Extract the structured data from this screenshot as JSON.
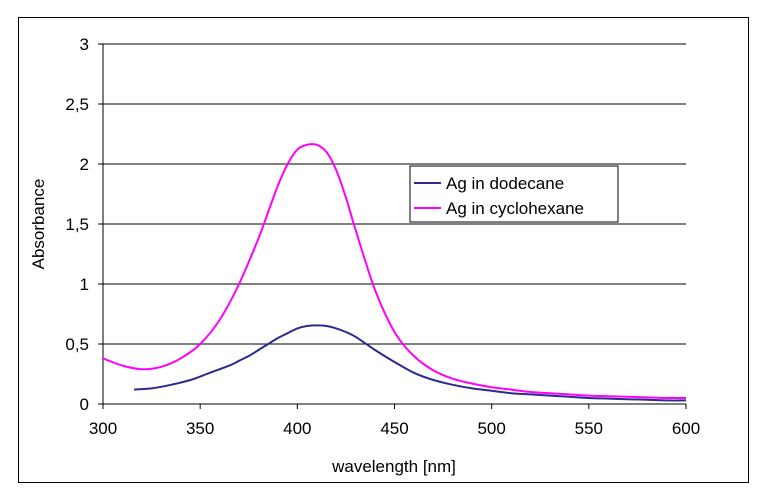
{
  "chart_data": {
    "type": "line",
    "xlabel": "wavelength [nm]",
    "ylabel": "Absorbance",
    "xlim": [
      300,
      600
    ],
    "ylim": [
      0,
      3
    ],
    "x_ticks": [
      300,
      350,
      400,
      450,
      500,
      550,
      600
    ],
    "y_ticks": [
      0,
      0.5,
      1,
      1.5,
      2,
      2.5,
      3
    ],
    "x_tick_labels": [
      "300",
      "350",
      "400",
      "450",
      "500",
      "550",
      "600"
    ],
    "y_tick_labels": [
      "0",
      "0,5",
      "1",
      "1,5",
      "2",
      "2,5",
      "3"
    ],
    "grid": "horizontal",
    "legend_position": "upper-right",
    "series": [
      {
        "name": "Ag in dodecane",
        "color": "#2b2b8c",
        "x": [
          316,
          325,
          335,
          345,
          355,
          365,
          370,
          375,
          380,
          385,
          390,
          395,
          400,
          405,
          410,
          415,
          420,
          425,
          430,
          440,
          450,
          460,
          470,
          480,
          490,
          500,
          510,
          520,
          530,
          540,
          550,
          560,
          570,
          580,
          590,
          600
        ],
        "y": [
          0.12,
          0.13,
          0.16,
          0.2,
          0.26,
          0.32,
          0.36,
          0.4,
          0.45,
          0.5,
          0.55,
          0.59,
          0.63,
          0.65,
          0.655,
          0.65,
          0.63,
          0.6,
          0.56,
          0.45,
          0.35,
          0.26,
          0.2,
          0.16,
          0.13,
          0.11,
          0.09,
          0.08,
          0.07,
          0.06,
          0.05,
          0.045,
          0.04,
          0.035,
          0.03,
          0.03
        ]
      },
      {
        "name": "Ag in cyclohexane",
        "color": "#ff00ff",
        "x": [
          300,
          310,
          320,
          330,
          340,
          350,
          360,
          370,
          380,
          385,
          390,
          395,
          400,
          405,
          410,
          415,
          420,
          425,
          430,
          440,
          450,
          460,
          470,
          480,
          490,
          500,
          510,
          520,
          530,
          540,
          550,
          560,
          570,
          580,
          590,
          600
        ],
        "y": [
          0.38,
          0.32,
          0.29,
          0.31,
          0.38,
          0.5,
          0.7,
          1.0,
          1.38,
          1.6,
          1.82,
          2.0,
          2.12,
          2.16,
          2.16,
          2.1,
          1.95,
          1.72,
          1.45,
          0.95,
          0.6,
          0.4,
          0.28,
          0.21,
          0.17,
          0.14,
          0.12,
          0.1,
          0.09,
          0.08,
          0.07,
          0.065,
          0.06,
          0.055,
          0.05,
          0.05
        ]
      }
    ]
  }
}
